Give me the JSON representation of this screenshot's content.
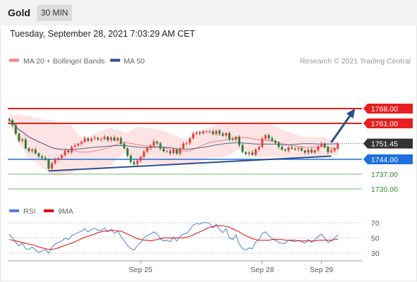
{
  "header": {
    "instrument": "Gold",
    "timeframe": "30 MIN",
    "timestamp": "Tuesday, September 28, 2021 7:03:29 AM CET"
  },
  "colors": {
    "bull": "#ef3b3b",
    "bear": "#2e7d32",
    "bollinger_fill": "#fde3e3",
    "ma20": "#f08080",
    "ma50": "#2c4f8a",
    "trendline": "#2c4f8a",
    "resistance": "#e62020",
    "current_price_tag": "#333333",
    "pivot_support": "#1e6fe0",
    "support_lines": "#6cbf6c",
    "support_text": "#2e8b2e",
    "rsi": "#4f7fd9",
    "rsi_ma": "#e60000"
  },
  "chart_data": [
    {
      "type": "candlestick",
      "title": "Gold",
      "legend": [
        {
          "name": "MA 20 + Bollinger Bands",
          "color": "#f08080"
        },
        {
          "name": "MA 50",
          "color": "#2c4f8a"
        }
      ],
      "credit": "Research © 2021 Trading Central",
      "ylim": [
        1725,
        1785
      ],
      "price_levels": [
        {
          "value": 1768.0,
          "label": "1768.00",
          "kind": "resistance"
        },
        {
          "value": 1761.0,
          "label": "1761.00",
          "kind": "resistance"
        },
        {
          "value": 1751.45,
          "label": "1751.45",
          "kind": "current"
        },
        {
          "value": 1744.0,
          "label": "1744.00",
          "kind": "pivot"
        },
        {
          "value": 1737.0,
          "label": "1737.00",
          "kind": "support"
        },
        {
          "value": 1730.0,
          "label": "1730.00",
          "kind": "support"
        }
      ],
      "x_labels": [
        {
          "index": 40,
          "label": "Sep 25"
        },
        {
          "index": 77,
          "label": "Sep 28"
        },
        {
          "index": 95,
          "label": "Sep 29"
        }
      ],
      "trendline": {
        "from_index": 12,
        "from_price": 1738.5,
        "to_index": 98,
        "to_price": 1745.5
      },
      "projection": {
        "from_index": 98,
        "from_price": 1752,
        "to_index": 105,
        "to_price": 1767.5
      },
      "close": [
        1762.5,
        1760.2,
        1756.1,
        1752.8,
        1753.4,
        1749.2,
        1747.9,
        1748.6,
        1746.8,
        1745.4,
        1744.7,
        1743.9,
        1739.6,
        1742.1,
        1743.8,
        1744.6,
        1745.9,
        1748.1,
        1747.4,
        1749.9,
        1750.6,
        1751.4,
        1752.2,
        1753.9,
        1752.8,
        1753.7,
        1754.1,
        1753.4,
        1753.6,
        1754.6,
        1753.1,
        1754.3,
        1752.9,
        1754.1,
        1751.3,
        1749.2,
        1745.7,
        1742.7,
        1741.6,
        1743.4,
        1745.1,
        1747.6,
        1749.4,
        1750.5,
        1752.4,
        1751.5,
        1749.1,
        1747.8,
        1747.9,
        1746.9,
        1748.6,
        1746.7,
        1749.1,
        1751.4,
        1751.7,
        1753.9,
        1756.1,
        1756.8,
        1756.3,
        1757.1,
        1757.2,
        1757.2,
        1755.9,
        1757.5,
        1756.1,
        1755.2,
        1756.4,
        1753.5,
        1753.3,
        1754.6,
        1750.8,
        1747.4,
        1746.5,
        1747.2,
        1746.1,
        1748.7,
        1749.8,
        1753.7,
        1755.4,
        1753.9,
        1752.8,
        1751.8,
        1749.9,
        1748.6,
        1748.2,
        1749.6,
        1749.1,
        1748.8,
        1749.2,
        1748.1,
        1747.2,
        1748.5,
        1747.2,
        1748.3,
        1750.1,
        1751.4,
        1749.8,
        1747.4,
        1748.1,
        1749.2,
        1751.4
      ]
    },
    {
      "type": "line",
      "title": "RSI",
      "legend": [
        {
          "name": "RSI",
          "color": "#4f7fd9"
        },
        {
          "name": "9MA",
          "color": "#e60000"
        }
      ],
      "ylim": [
        20,
        80
      ],
      "levels": [
        {
          "value": 70,
          "label": "70"
        },
        {
          "value": 50,
          "label": "50"
        },
        {
          "value": 30,
          "label": "30"
        }
      ],
      "series": [
        {
          "name": "RSI",
          "values": [
            55,
            50,
            44,
            40,
            43,
            36,
            35,
            38,
            34,
            31,
            33,
            35,
            30,
            38,
            42,
            44,
            46,
            50,
            48,
            53,
            55,
            57,
            59,
            62,
            58,
            61,
            63,
            60,
            60,
            63,
            58,
            61,
            56,
            59,
            52,
            46,
            40,
            36,
            34,
            40,
            44,
            50,
            53,
            55,
            58,
            55,
            49,
            46,
            47,
            45,
            51,
            46,
            52,
            55,
            56,
            61,
            67,
            69,
            68,
            70,
            70,
            69,
            63,
            68,
            61,
            57,
            62,
            50,
            48,
            54,
            42,
            36,
            34,
            37,
            36,
            45,
            48,
            56,
            58,
            53,
            49,
            47,
            44,
            43,
            43,
            47,
            46,
            45,
            47,
            45,
            43,
            48,
            44,
            48,
            52,
            55,
            50,
            44,
            46,
            50,
            54
          ]
        },
        {
          "name": "9MA",
          "values": [
            48,
            47,
            46,
            45,
            44,
            43,
            42,
            41,
            40,
            38,
            37,
            36,
            35,
            35,
            36,
            37,
            39,
            40,
            42,
            43,
            45,
            47,
            49,
            51,
            52,
            54,
            55,
            57,
            58,
            59,
            59,
            60,
            60,
            59,
            59,
            57,
            55,
            53,
            51,
            49,
            48,
            47,
            47,
            46,
            47,
            48,
            49,
            50,
            50,
            50,
            50,
            50,
            50,
            50,
            51,
            52,
            54,
            56,
            58,
            60,
            62,
            64,
            65,
            66,
            66,
            66,
            65,
            64,
            62,
            60,
            58,
            55,
            53,
            51,
            49,
            48,
            47,
            47,
            47,
            47,
            48,
            48,
            48,
            48,
            47,
            47,
            47,
            47,
            46,
            46,
            46,
            46,
            46,
            46,
            47,
            47,
            47,
            47,
            47,
            48,
            48
          ]
        }
      ],
      "x_labels": [
        {
          "index": 40,
          "label": "Sep 25"
        },
        {
          "index": 77,
          "label": "Sep 28"
        },
        {
          "index": 95,
          "label": "Sep 29"
        }
      ]
    }
  ]
}
